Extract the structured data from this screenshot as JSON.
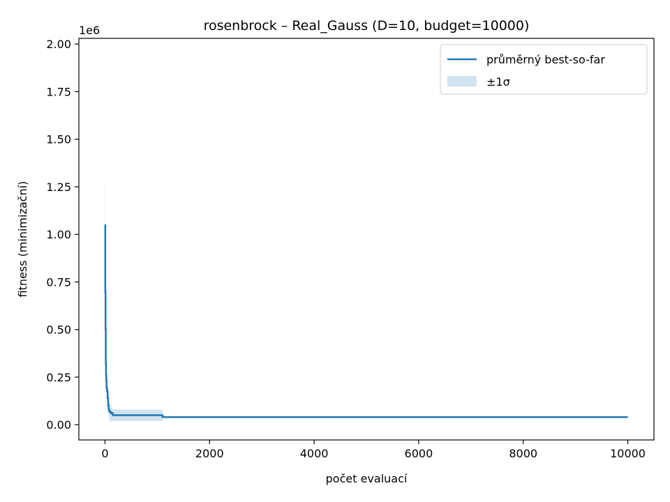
{
  "chart_data": {
    "type": "line",
    "title": "rosenbrock – Real_Gauss (D=10, budget=10000)",
    "xlabel": "počet evaluací",
    "ylabel": "fitness (minimizační)",
    "y_offset_label": "1e6",
    "xlim": [
      -500,
      10500
    ],
    "ylim": [
      -80000,
      2030000
    ],
    "x_ticks": [
      0,
      2000,
      4000,
      6000,
      8000,
      10000
    ],
    "x_tick_labels": [
      "0",
      "2000",
      "4000",
      "6000",
      "8000",
      "10000"
    ],
    "y_ticks": [
      0,
      250000,
      500000,
      750000,
      1000000,
      1250000,
      1500000,
      1750000,
      2000000
    ],
    "y_tick_labels": [
      "0.00",
      "0.25",
      "0.50",
      "0.75",
      "1.00",
      "1.25",
      "1.50",
      "1.75",
      "2.00"
    ],
    "grid": false,
    "legend_position": "top-right",
    "series": [
      {
        "name": "průměrný best-so-far",
        "color": "#1f77b4",
        "x": [
          0,
          5,
          10,
          15,
          20,
          25,
          30,
          40,
          50,
          60,
          70,
          80,
          100,
          120,
          150,
          200,
          400,
          700,
          1000,
          1100,
          1150,
          2000,
          4000,
          6000,
          8000,
          10000
        ],
        "y": [
          1050000,
          700000,
          500000,
          320000,
          260000,
          230000,
          190000,
          175000,
          140000,
          100000,
          80000,
          70000,
          65000,
          60000,
          50000,
          50000,
          50000,
          50000,
          50000,
          40000,
          40000,
          40000,
          40000,
          40000,
          40000,
          40000
        ]
      }
    ],
    "band": {
      "name": "±1σ",
      "color": "#1f77b4",
      "opacity": 0.2,
      "x": [
        0,
        5,
        10,
        20,
        30,
        50,
        70,
        90,
        100,
        110,
        120,
        140,
        160,
        200,
        400,
        700,
        1000,
        1090,
        1100,
        2000,
        4000,
        6000,
        8000,
        10000
      ],
      "upper": [
        1250000,
        900000,
        650000,
        350000,
        240000,
        180000,
        120000,
        115000,
        110000,
        110000,
        90000,
        80000,
        80000,
        80000,
        80000,
        80000,
        80000,
        80000,
        42000,
        42000,
        42000,
        42000,
        42000,
        42000
      ],
      "lower": [
        850000,
        500000,
        350000,
        170000,
        140000,
        100000,
        40000,
        20000,
        15000,
        15000,
        20000,
        20000,
        20000,
        20000,
        20000,
        20000,
        20000,
        20000,
        38000,
        38000,
        38000,
        38000,
        38000,
        38000
      ]
    }
  }
}
